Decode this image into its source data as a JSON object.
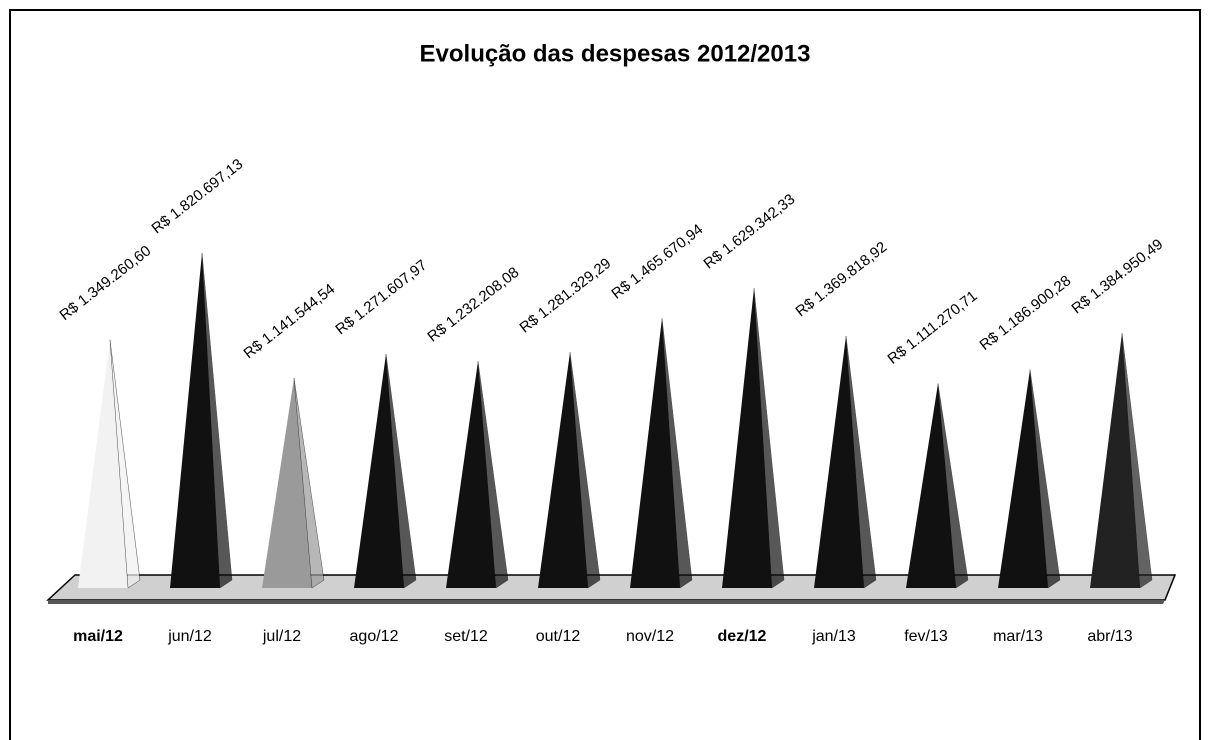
{
  "chart_data": {
    "type": "pyramid",
    "title": "Evolução das despesas 2012/2013",
    "categories": [
      "mai/12",
      "jun/12",
      "jul/12",
      "ago/12",
      "set/12",
      "out/12",
      "nov/12",
      "dez/12",
      "jan/13",
      "fev/13",
      "mar/13",
      "abr/13"
    ],
    "values": [
      1349260.6,
      1820697.13,
      1141544.54,
      1271607.97,
      1232208.08,
      1281329.29,
      1465670.94,
      1629342.33,
      1369818.92,
      1111270.71,
      1186900.28,
      1384950.49
    ],
    "value_labels": [
      "R$ 1.349.260,60",
      "R$ 1.820.697,13",
      "R$ 1.141.544,54",
      "R$ 1.271.607,97",
      "R$ 1.232.208,08",
      "R$ 1.281.329,29",
      "R$ 1.465.670,94",
      "R$ 1.629.342,33",
      "R$ 1.369.818,92",
      "R$ 1.111.270,71",
      "R$ 1.186.900,28",
      "R$ 1.384.950,49"
    ],
    "colors": [
      "#f2f2f2",
      "#111111",
      "#9a9a9a",
      "#111111",
      "#111111",
      "#111111",
      "#111111",
      "#111111",
      "#111111",
      "#111111",
      "#111111",
      "#222222"
    ]
  }
}
